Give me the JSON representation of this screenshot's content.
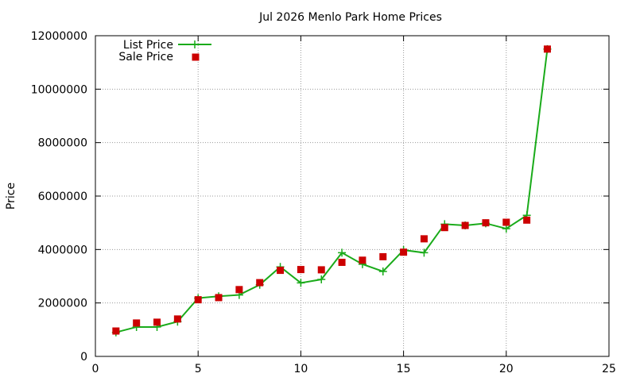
{
  "chart_data": {
    "type": "line",
    "title": "Jul 2026 Menlo Park Home Prices",
    "xlabel": "",
    "ylabel": "Price",
    "xlim": [
      0,
      25
    ],
    "ylim": [
      0,
      12000000
    ],
    "xticks": [
      0,
      5,
      10,
      15,
      20,
      25
    ],
    "yticks": [
      0,
      2000000,
      4000000,
      6000000,
      8000000,
      10000000,
      12000000
    ],
    "grid": true,
    "legend_position": "top-left",
    "series": [
      {
        "name": "List Price",
        "style": "line-with-plus-markers",
        "color": "#1aab1a",
        "points": [
          [
            1,
            900000
          ],
          [
            2,
            1100000
          ],
          [
            3,
            1100000
          ],
          [
            4,
            1300000
          ],
          [
            5,
            2180000
          ],
          [
            6,
            2250000
          ],
          [
            7,
            2300000
          ],
          [
            8,
            2680000
          ],
          [
            9,
            3350000
          ],
          [
            10,
            2750000
          ],
          [
            11,
            2880000
          ],
          [
            12,
            3880000
          ],
          [
            13,
            3450000
          ],
          [
            14,
            3180000
          ],
          [
            15,
            3980000
          ],
          [
            16,
            3880000
          ],
          [
            17,
            4950000
          ],
          [
            18,
            4900000
          ],
          [
            19,
            4980000
          ],
          [
            20,
            4780000
          ],
          [
            21,
            5280000
          ],
          [
            22,
            11500000
          ]
        ]
      },
      {
        "name": "Sale Price",
        "style": "square-markers",
        "color": "#cc0000",
        "points": [
          [
            1,
            950000
          ],
          [
            2,
            1250000
          ],
          [
            3,
            1280000
          ],
          [
            4,
            1400000
          ],
          [
            5,
            2120000
          ],
          [
            6,
            2200000
          ],
          [
            7,
            2500000
          ],
          [
            8,
            2760000
          ],
          [
            9,
            3220000
          ],
          [
            10,
            3250000
          ],
          [
            11,
            3240000
          ],
          [
            12,
            3520000
          ],
          [
            13,
            3600000
          ],
          [
            14,
            3730000
          ],
          [
            15,
            3900000
          ],
          [
            16,
            4400000
          ],
          [
            17,
            4820000
          ],
          [
            18,
            4900000
          ],
          [
            19,
            5000000
          ],
          [
            20,
            5020000
          ],
          [
            21,
            5100000
          ],
          [
            22,
            11500000
          ]
        ]
      }
    ]
  }
}
